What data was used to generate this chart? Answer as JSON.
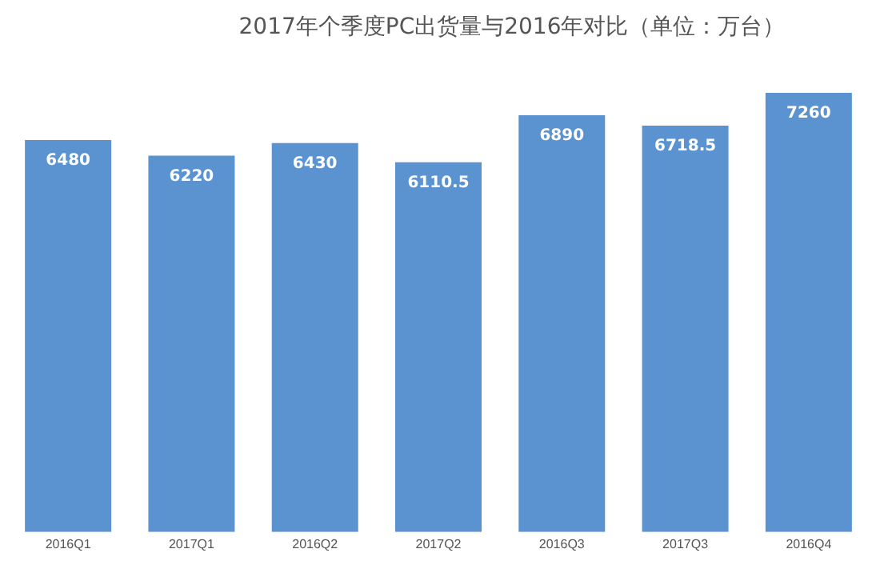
{
  "chart_data": {
    "type": "bar",
    "title": "2017年个季度PC出货量与2016年对比（单位：万台）",
    "categories": [
      "2016Q1",
      "2017Q1",
      "2016Q2",
      "2017Q2",
      "2016Q3",
      "2017Q3",
      "2016Q4"
    ],
    "values": [
      6480,
      6220,
      6430,
      6110.5,
      6890,
      6718.5,
      7260
    ],
    "color": "#5b93d0",
    "tick_labels": "x",
    "data_labels": true,
    "grid": false,
    "legend": false
  }
}
